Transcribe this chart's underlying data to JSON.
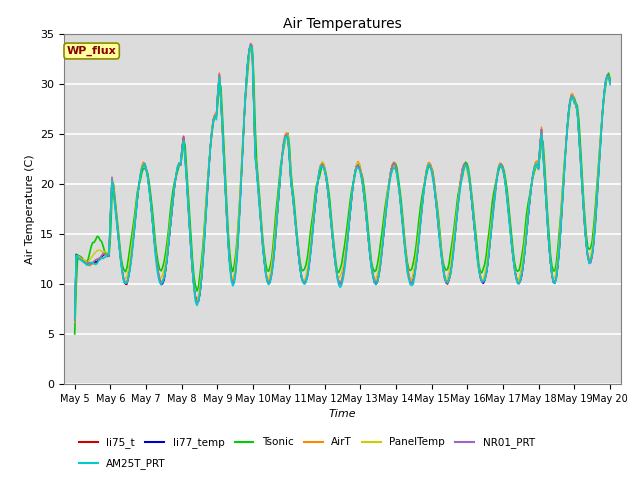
{
  "title": "Air Temperatures",
  "xlabel": "Time",
  "ylabel": "Air Temperature (C)",
  "ylim": [
    0,
    35
  ],
  "yticks": [
    0,
    5,
    10,
    15,
    20,
    25,
    30,
    35
  ],
  "x_labels": [
    "May 5",
    "May 6",
    "May 7",
    "May 8",
    "May 9",
    "May 10",
    "May 11",
    "May 12",
    "May 13",
    "May 14",
    "May 15",
    "May 16",
    "May 17",
    "May 18",
    "May 19",
    "May 20"
  ],
  "annotation_text": "WP_flux",
  "annotation_color": "#8B0000",
  "annotation_bg": "#FFFFA0",
  "annotation_border": "#8B8B00",
  "series_order": [
    "li75_t",
    "li77_temp",
    "Tsonic",
    "AirT",
    "PanelTemp",
    "NR01_PRT",
    "AM25T_PRT"
  ],
  "series": {
    "li75_t": {
      "color": "#CC0000",
      "lw": 1.0
    },
    "li77_temp": {
      "color": "#0000CC",
      "lw": 1.0
    },
    "Tsonic": {
      "color": "#00CC00",
      "lw": 1.2
    },
    "AirT": {
      "color": "#FF8800",
      "lw": 1.0
    },
    "PanelTemp": {
      "color": "#CCCC00",
      "lw": 1.0
    },
    "NR01_PRT": {
      "color": "#9966CC",
      "lw": 1.0
    },
    "AM25T_PRT": {
      "color": "#00CCCC",
      "lw": 1.2
    }
  },
  "bg_color": "#DCDCDC",
  "grid_color": "white",
  "fig_w": 6.4,
  "fig_h": 4.8,
  "dpi": 100
}
